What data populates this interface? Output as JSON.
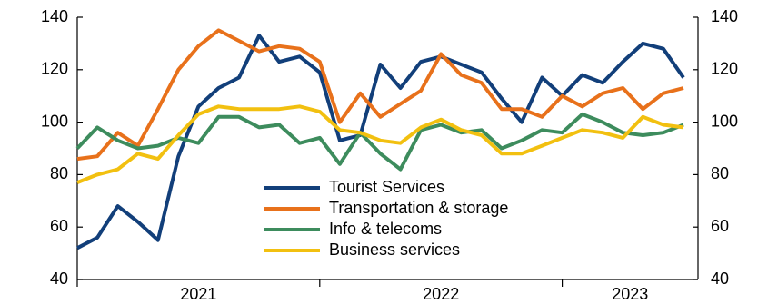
{
  "chart_data": {
    "type": "line",
    "x": [
      2021,
      2021.083,
      2021.167,
      2021.25,
      2021.333,
      2021.417,
      2021.5,
      2021.583,
      2021.667,
      2021.75,
      2021.833,
      2021.917,
      2022,
      2022.083,
      2022.167,
      2022.25,
      2022.333,
      2022.417,
      2022.5,
      2022.583,
      2022.667,
      2022.75,
      2022.833,
      2022.917,
      2023,
      2023.083,
      2023.167,
      2023.25,
      2023.333,
      2023.417,
      2023.5
    ],
    "xlim": [
      2021,
      2023.56
    ],
    "xticks": [
      2021,
      2022,
      2023
    ],
    "ylim": [
      40,
      140
    ],
    "yticks": [
      40,
      60,
      80,
      100,
      120,
      140
    ],
    "legend": "center",
    "series": [
      {
        "name": "Tourist Services",
        "color": "#123f7a",
        "values": [
          52,
          56,
          68,
          62,
          55,
          87,
          106,
          113,
          117,
          133,
          123,
          125,
          119,
          93,
          95,
          122,
          113,
          123,
          125,
          122,
          119,
          109,
          100,
          117,
          110,
          118,
          115,
          123,
          130,
          128,
          117
        ]
      },
      {
        "name": "Transportation & storage",
        "color": "#e8711b",
        "values": [
          86,
          87,
          96,
          91,
          105,
          120,
          129,
          135,
          131,
          127,
          129,
          128,
          123,
          100,
          111,
          102,
          107,
          112,
          126,
          118,
          115,
          105,
          105,
          102,
          110,
          106,
          111,
          113,
          105,
          111,
          113
        ]
      },
      {
        "name": "Info & telecoms",
        "color": "#3d8c5d",
        "values": [
          90,
          98,
          93,
          90,
          91,
          94,
          92,
          102,
          102,
          98,
          99,
          92,
          94,
          84,
          96,
          88,
          82,
          97,
          99,
          96,
          97,
          90,
          93,
          97,
          96,
          103,
          100,
          96,
          95,
          96,
          99
        ]
      },
      {
        "name": "Business services",
        "color": "#f2c010",
        "values": [
          77,
          80,
          82,
          88,
          86,
          95,
          103,
          106,
          105,
          105,
          105,
          106,
          104,
          97,
          96,
          93,
          92,
          98,
          101,
          97,
          95,
          88,
          88,
          91,
          94,
          97,
          96,
          94,
          102,
          99,
          98
        ]
      }
    ]
  }
}
